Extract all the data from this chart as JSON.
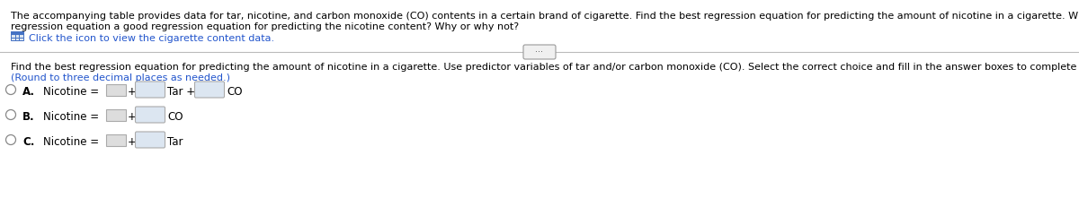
{
  "bg_color": "#ffffff",
  "line1": "The accompanying table provides data for tar, nicotine, and carbon monoxide (CO) contents in a certain brand of cigarette. Find the best regression equation for predicting the amount of nicotine in a cigarette. Why is it best? Is the best",
  "line2": "regression equation a good regression equation for predicting the nicotine content? Why or why not?",
  "click_text": "Click the icon to view the cigarette content data.",
  "main_instruction": "Find the best regression equation for predicting the amount of nicotine in a cigarette. Use predictor variables of tar and/or carbon monoxide (CO). Select the correct choice and fill in the answer boxes to complete your choice.",
  "round_note": "(Round to three decimal places as needed.)",
  "text_color": "#000000",
  "link_color": "#2255cc",
  "round_color": "#2255cc",
  "icon_color": "#4472c4",
  "font_size": 8.0,
  "font_size_options": 8.5
}
